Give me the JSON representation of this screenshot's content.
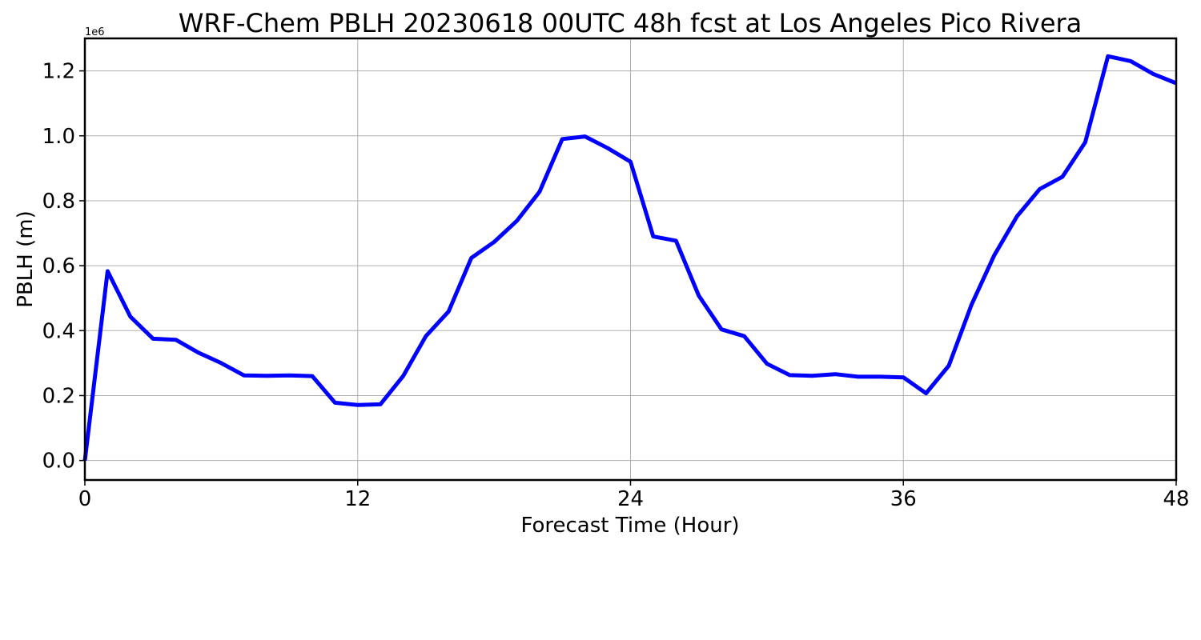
{
  "chart_data": {
    "type": "line",
    "title": "WRF-Chem PBLH  20230618 00UTC 48h fcst at Los Angeles Pico Rivera",
    "xlabel": "Forecast Time (Hour)",
    "ylabel": "PBLH  (m)",
    "y_offset_label": "1e6",
    "xlim": [
      0,
      48
    ],
    "ylim": [
      -60000,
      1300000
    ],
    "x_ticks": [
      0,
      12,
      24,
      36,
      48
    ],
    "x_tick_labels": [
      "0",
      "12",
      "24",
      "36",
      "48"
    ],
    "y_ticks": [
      0,
      200000,
      400000,
      600000,
      800000,
      1000000,
      1200000
    ],
    "y_tick_labels": [
      "0.0",
      "0.2",
      "0.4",
      "0.6",
      "0.8",
      "1.0",
      "1.2"
    ],
    "grid": true,
    "line_color": "#0000ff",
    "series": [
      {
        "x": [
          0,
          1,
          2,
          3,
          4,
          5,
          6,
          7,
          8,
          9,
          10,
          11,
          12,
          13,
          14,
          15,
          16,
          17,
          18,
          19,
          20,
          21,
          22,
          23,
          24,
          25,
          26,
          27,
          28,
          29,
          30,
          31,
          32,
          33,
          34,
          35,
          36,
          37,
          38,
          39,
          40,
          41,
          42,
          43,
          44,
          45,
          46,
          47,
          48
        ],
        "values": [
          0,
          583000,
          443000,
          375000,
          372000,
          332000,
          300000,
          262000,
          261000,
          262000,
          260000,
          178000,
          171000,
          173000,
          260000,
          383000,
          459000,
          624000,
          673000,
          738000,
          828000,
          990000,
          998000,
          962000,
          920000,
          690000,
          677000,
          508000,
          404000,
          383000,
          298000,
          263000,
          261000,
          266000,
          258000,
          258000,
          256000,
          207000,
          292000,
          480000,
          632000,
          752000,
          836000,
          874000,
          980000,
          1245000,
          1230000,
          1190000,
          1162000
        ]
      }
    ]
  }
}
